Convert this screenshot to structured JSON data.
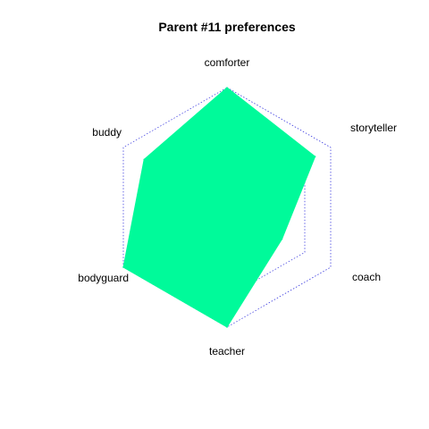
{
  "chart_data": {
    "type": "radar",
    "title": "Parent #11 preferences",
    "axes": [
      "comforter",
      "storyteller",
      "coach",
      "teacher",
      "bodyguard",
      "buddy"
    ],
    "values": [
      1.0,
      0.85,
      0.53,
      1.0,
      1.0,
      0.8
    ],
    "range": [
      0,
      1
    ],
    "grid_levels": [
      0.25,
      0.5,
      0.75,
      1.0
    ],
    "grid": true,
    "grid_style": "dotted",
    "colors": {
      "fill": "#00FA9A",
      "grid": "#4040E0",
      "text": "#000000"
    }
  }
}
